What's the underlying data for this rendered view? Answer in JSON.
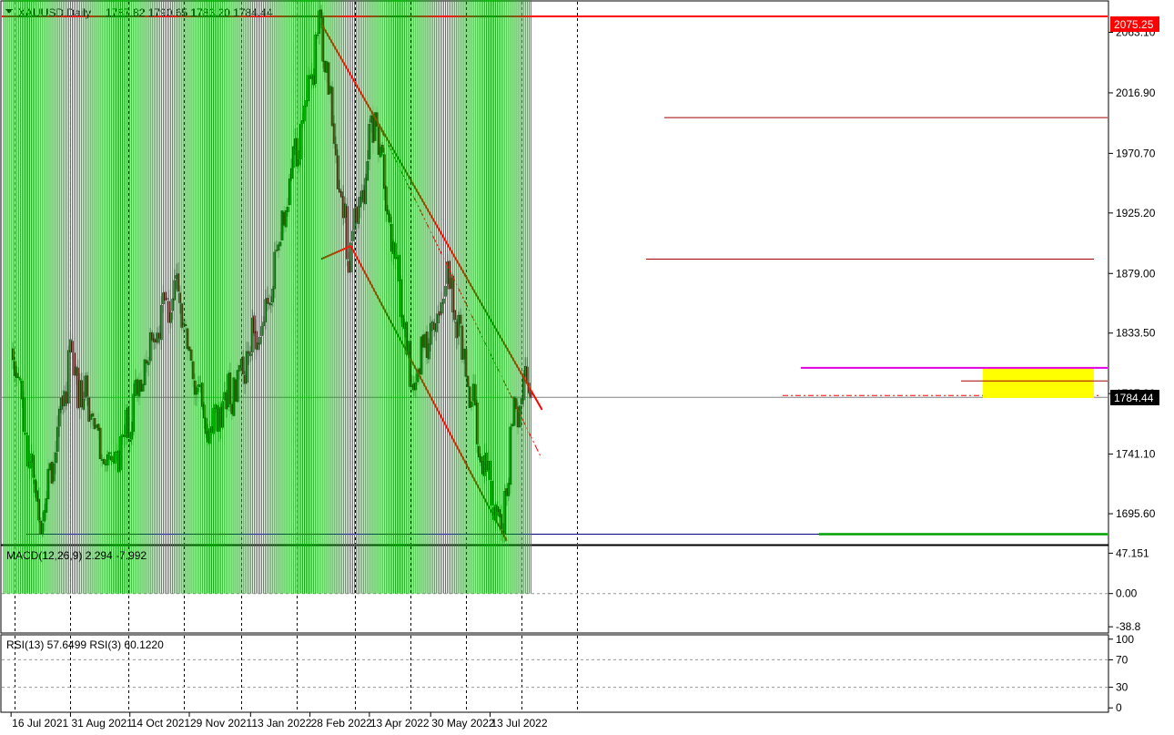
{
  "header": {
    "symbol": "XAUUSD,Daily",
    "ohlc": "1787.82 1790.65 1783.20 1784.44"
  },
  "price_tags": {
    "high_level": "2075.25",
    "current": "1784.44"
  },
  "macd": {
    "label": "MACD(12,26,9) 2.294 -7.992"
  },
  "rsi": {
    "label": "RSI(13) 57.6499  RSI(3) 60.1220"
  },
  "colors": {
    "bull": "#00a000",
    "bear": "#c00000",
    "channel": "#ff0000",
    "magenta": "#e000e0",
    "yellow": "#ffff00",
    "green_support": "#00a000",
    "navy_support": "#000080",
    "macd_hist": "#00b000",
    "macd_signal": "#d00000",
    "rsi13": "#00a000",
    "rsi3": "#e00000",
    "grid": "#000000"
  },
  "chart_data": [
    {
      "type": "candlestick",
      "title": "XAUUSD,Daily",
      "x": [
        "16 Jul 2021",
        "31 Aug 2021",
        "14 Oct 2021",
        "29 Nov 2021",
        "13 Jan 2022",
        "28 Feb 2022",
        "13 Apr 2022",
        "30 May 2022",
        "13 Jul 2022"
      ],
      "ylim": [
        1672,
        2085
      ],
      "y_ticks": [
        "2063.10",
        "2016.90",
        "1970.70",
        "1925.20",
        "1879.00",
        "1833.50",
        "1787.30",
        "1741.10",
        "1695.60"
      ],
      "last_bar": {
        "open": 1787.82,
        "high": 1790.65,
        "low": 1783.2,
        "close": 1784.44
      },
      "key_points": [
        {
          "date": "16 Jul 2021",
          "price": 1820
        },
        {
          "date": "09 Aug 2021",
          "price": 1690
        },
        {
          "date": "31 Aug 2021",
          "price": 1815
        },
        {
          "date": "29 Sep 2021",
          "price": 1725
        },
        {
          "date": "16 Nov 2021",
          "price": 1870
        },
        {
          "date": "15 Dec 2021",
          "price": 1755
        },
        {
          "date": "25 Jan 2022",
          "price": 1850
        },
        {
          "date": "08 Mar 2022",
          "price": 2070
        },
        {
          "date": "29 Mar 2022",
          "price": 1890
        },
        {
          "date": "18 Apr 2022",
          "price": 1998
        },
        {
          "date": "16 May 2022",
          "price": 1790
        },
        {
          "date": "13 Jun 2022",
          "price": 1875
        },
        {
          "date": "04 Jul 2022",
          "price": 1760
        },
        {
          "date": "21 Jul 2022",
          "price": 1680
        },
        {
          "date": "01 Aug 2022",
          "price": 1775
        },
        {
          "date": "10 Aug 2022",
          "price": 1801
        },
        {
          "date": "12 Aug 2022",
          "price": 1784.44
        }
      ],
      "levels": [
        {
          "name": "2075.25",
          "price": 2075.25
        },
        {
          "name": "resistance 1",
          "price": 1998
        },
        {
          "name": "resistance 2",
          "price": 1890
        },
        {
          "name": "magenta",
          "price": 1807
        },
        {
          "name": "current",
          "price": 1784.44
        },
        {
          "name": "support",
          "price": 1680
        }
      ],
      "channel": {
        "upper": [
          {
            "date": "08 Mar 2022",
            "price": 2070
          },
          {
            "date": "22 Aug 2022",
            "price": 1775
          }
        ],
        "lower": [
          {
            "date": "30 Mar 2022",
            "price": 1900
          },
          {
            "date": "26 Jul 2022",
            "price": 1675
          }
        ]
      },
      "zone": {
        "from": 1784,
        "to": 1807
      }
    },
    {
      "type": "bar",
      "title": "MACD(12,26,9) 2.294 -7.992",
      "ylim": [
        -45,
        55
      ],
      "y_ticks": [
        "47.151",
        "0.00",
        "-38.8"
      ],
      "macd": 2.294,
      "signal": -7.992
    },
    {
      "type": "line",
      "title": "RSI(13) 57.6499  RSI(3) 60.1220",
      "ylim": [
        -5,
        105
      ],
      "y_ticks": [
        "100",
        "70",
        "30",
        "0"
      ],
      "series": [
        {
          "name": "RSI(13)",
          "last": 57.6499
        },
        {
          "name": "RSI(3)",
          "last": 60.122
        }
      ]
    }
  ]
}
